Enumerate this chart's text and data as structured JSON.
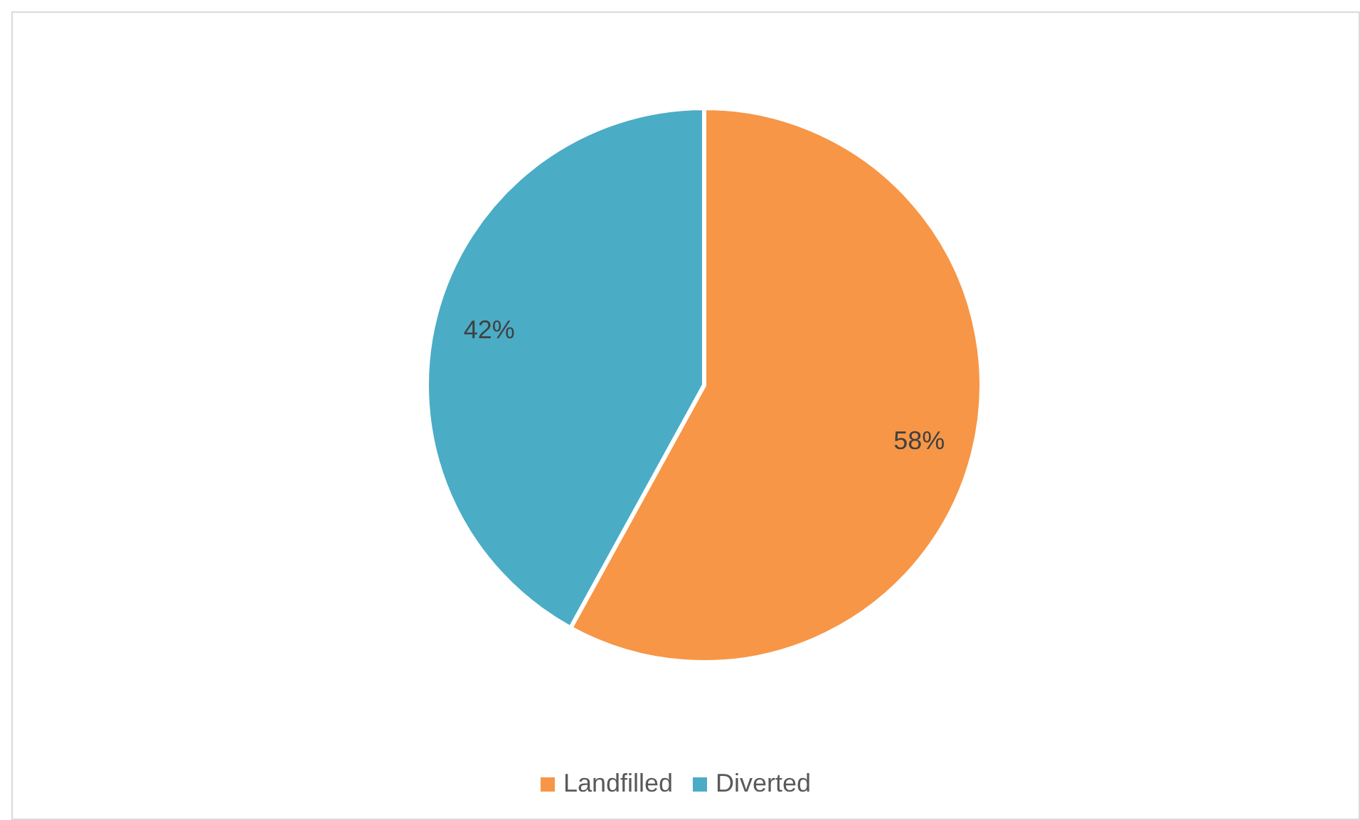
{
  "chart_data": {
    "type": "pie",
    "categories": [
      "Landfilled",
      "Diverted"
    ],
    "values": [
      58,
      42
    ],
    "colors": [
      "#f79646",
      "#4bacc6"
    ],
    "value_labels": [
      "58%",
      "42%"
    ],
    "legend": "bottom"
  }
}
